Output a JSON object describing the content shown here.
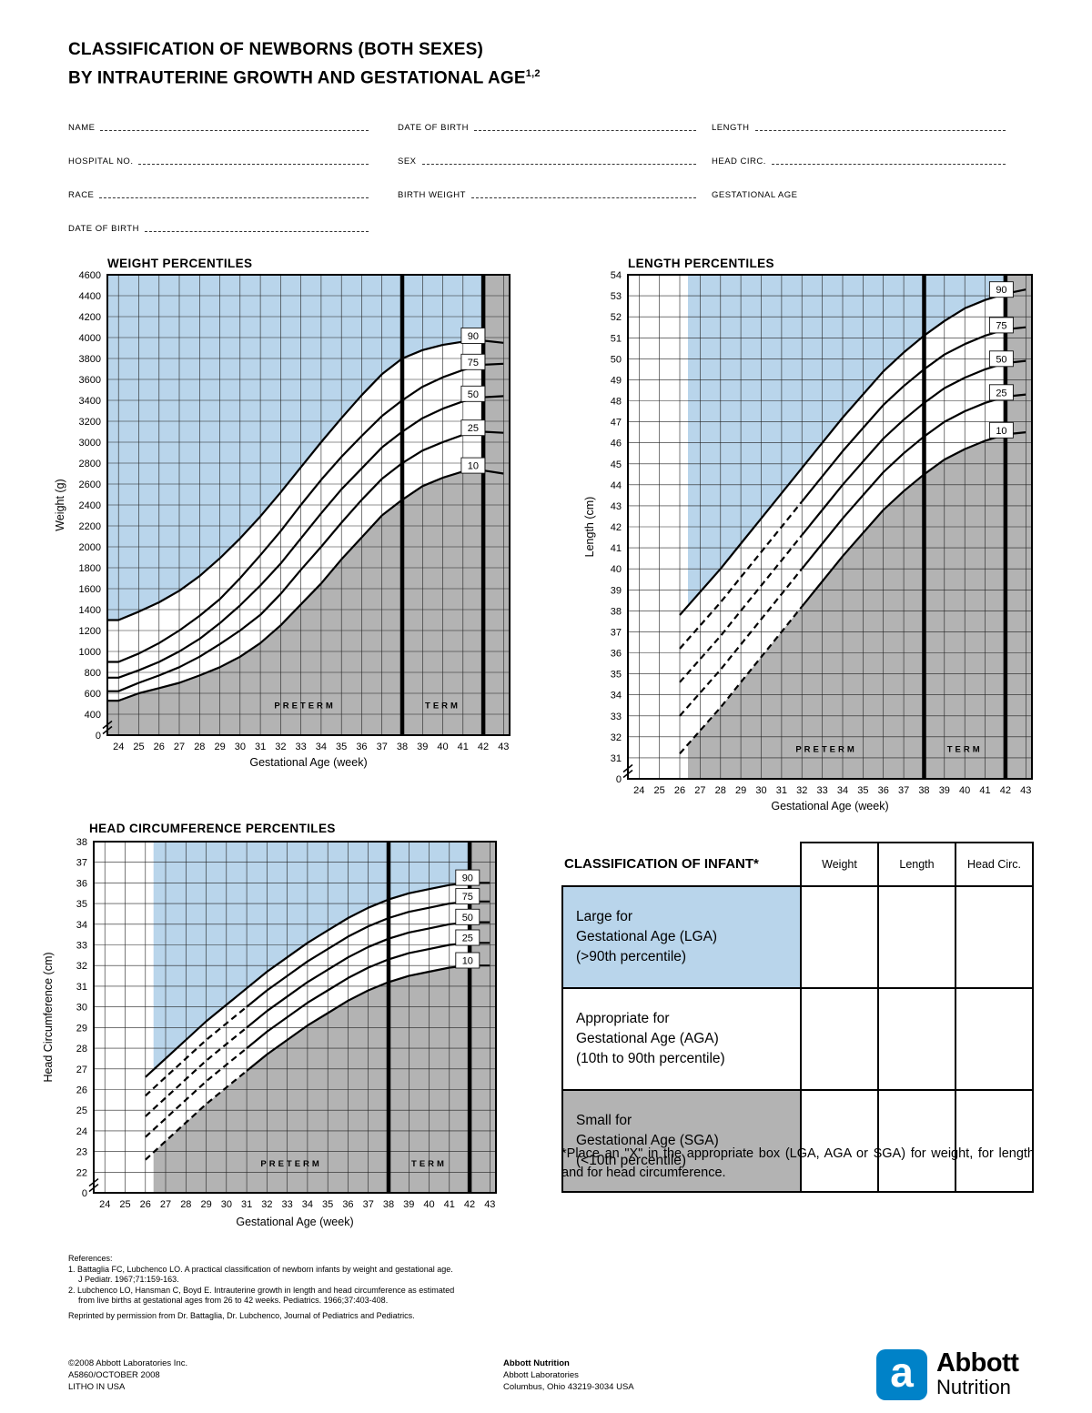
{
  "page": {
    "title_line1": "CLASSIFICATION OF NEWBORNS (BOTH SEXES)",
    "title_line2": "BY INTRAUTERINE GROWTH AND GESTATIONAL AGE",
    "title_superscript": "1,2"
  },
  "form": {
    "col1": [
      {
        "label": "NAME"
      },
      {
        "label": "HOSPITAL NO."
      },
      {
        "label": "RACE"
      },
      {
        "label": "DATE OF BIRTH"
      }
    ],
    "col2": [
      {
        "label": "DATE OF BIRTH"
      },
      {
        "label": "SEX"
      },
      {
        "label": "BIRTH WEIGHT"
      }
    ],
    "col3": [
      {
        "label": "LENGTH"
      },
      {
        "label": "HEAD CIRC."
      },
      {
        "label": "GESTATIONAL AGE"
      }
    ]
  },
  "chart_data": [
    {
      "id": "weight",
      "type": "line",
      "title": "WEIGHT PERCENTILES",
      "xlabel": "Gestational Age (week)",
      "ylabel": "Weight (g)",
      "x": {
        "min": 24,
        "max": 43
      },
      "y": {
        "first": 400,
        "max": 4600,
        "step": 200,
        "zero_break": true
      },
      "series_start_week": 24,
      "extend_left": true,
      "series": [
        {
          "name": "90",
          "values": [
            1300,
            1380,
            1470,
            1580,
            1720,
            1890,
            2080,
            2290,
            2520,
            2760,
            3000,
            3230,
            3450,
            3650,
            3800,
            3880,
            3930,
            3960,
            3970,
            3950
          ]
        },
        {
          "name": "75",
          "values": [
            900,
            980,
            1080,
            1200,
            1340,
            1500,
            1700,
            1920,
            2150,
            2400,
            2640,
            2860,
            3060,
            3250,
            3400,
            3530,
            3620,
            3690,
            3740,
            3750
          ]
        },
        {
          "name": "50",
          "values": [
            750,
            820,
            900,
            1000,
            1120,
            1270,
            1440,
            1630,
            1840,
            2080,
            2320,
            2550,
            2750,
            2950,
            3100,
            3230,
            3320,
            3390,
            3430,
            3440
          ]
        },
        {
          "name": "25",
          "values": [
            620,
            700,
            770,
            850,
            950,
            1070,
            1200,
            1350,
            1550,
            1780,
            2000,
            2230,
            2450,
            2650,
            2800,
            2920,
            3000,
            3070,
            3100,
            3090
          ]
        },
        {
          "name": "10",
          "values": [
            530,
            600,
            650,
            700,
            770,
            850,
            950,
            1080,
            1250,
            1450,
            1650,
            1880,
            2090,
            2300,
            2450,
            2580,
            2660,
            2720,
            2730,
            2700
          ]
        }
      ],
      "dashed_until_week": null,
      "dashed_series": [],
      "regions": {
        "shade_start_week": 23.4,
        "preterm_end_week": 38,
        "term_end_week": 42,
        "preterm_label": "PRETERM",
        "term_label": "TERM"
      },
      "percentile_label_week": 41.5
    },
    {
      "id": "length",
      "type": "line",
      "title": "LENGTH PERCENTILES",
      "xlabel": "Gestational Age (week)",
      "ylabel": "Length (cm)",
      "x": {
        "min": 24,
        "max": 43
      },
      "y": {
        "first": 31,
        "max": 54,
        "step": 1,
        "zero_break": true
      },
      "series_start_week": 26,
      "extend_left": false,
      "series": [
        {
          "name": "90",
          "values": [
            37.8,
            38.9,
            40.0,
            41.2,
            42.4,
            43.6,
            44.8,
            46.0,
            47.2,
            48.3,
            49.4,
            50.3,
            51.1,
            51.8,
            52.4,
            52.8,
            53.1,
            53.3
          ]
        },
        {
          "name": "75",
          "values": [
            36.2,
            37.3,
            38.4,
            39.6,
            40.8,
            42.0,
            43.2,
            44.4,
            45.6,
            46.7,
            47.8,
            48.7,
            49.5,
            50.2,
            50.7,
            51.1,
            51.4,
            51.5
          ]
        },
        {
          "name": "50",
          "values": [
            34.6,
            35.7,
            36.8,
            38.0,
            39.2,
            40.4,
            41.6,
            42.8,
            44.0,
            45.1,
            46.2,
            47.1,
            47.9,
            48.6,
            49.1,
            49.5,
            49.8,
            49.9
          ]
        },
        {
          "name": "25",
          "values": [
            33.0,
            34.1,
            35.2,
            36.4,
            37.6,
            38.8,
            40.0,
            41.2,
            42.4,
            43.5,
            44.6,
            45.5,
            46.3,
            47.0,
            47.5,
            47.9,
            48.2,
            48.3
          ]
        },
        {
          "name": "10",
          "values": [
            31.2,
            32.3,
            33.4,
            34.6,
            35.8,
            37.0,
            38.2,
            39.4,
            40.6,
            41.7,
            42.8,
            43.7,
            44.5,
            45.2,
            45.7,
            46.1,
            46.4,
            46.5
          ]
        }
      ],
      "dashed_until_week": 32,
      "dashed_series": [
        "75",
        "50",
        "25",
        "10"
      ],
      "regions": {
        "shade_start_week": 26.4,
        "preterm_end_week": 38,
        "term_end_week": 42,
        "preterm_label": "PRETERM",
        "term_label": "TERM"
      },
      "percentile_label_week": 41.8
    },
    {
      "id": "head",
      "type": "line",
      "title": "HEAD CIRCUMFERENCE PERCENTILES",
      "xlabel": "Gestational Age (week)",
      "ylabel": "Head Circumference (cm)",
      "x": {
        "min": 24,
        "max": 43
      },
      "y": {
        "first": 22,
        "max": 38,
        "step": 1,
        "zero_break": true
      },
      "series_start_week": 26,
      "extend_left": false,
      "series": [
        {
          "name": "90",
          "values": [
            26.6,
            27.5,
            28.4,
            29.3,
            30.1,
            30.9,
            31.7,
            32.4,
            33.1,
            33.7,
            34.3,
            34.8,
            35.2,
            35.5,
            35.7,
            35.9,
            36.0,
            36.0
          ]
        },
        {
          "name": "75",
          "values": [
            25.7,
            26.6,
            27.5,
            28.4,
            29.2,
            30.0,
            30.8,
            31.5,
            32.2,
            32.8,
            33.4,
            33.9,
            34.3,
            34.6,
            34.8,
            35.0,
            35.1,
            35.1
          ]
        },
        {
          "name": "50",
          "values": [
            24.7,
            25.6,
            26.5,
            27.4,
            28.2,
            29.0,
            29.8,
            30.5,
            31.2,
            31.8,
            32.4,
            32.9,
            33.3,
            33.6,
            33.8,
            34.0,
            34.1,
            34.1
          ]
        },
        {
          "name": "25",
          "values": [
            23.7,
            24.6,
            25.5,
            26.4,
            27.2,
            28.0,
            28.8,
            29.5,
            30.2,
            30.8,
            31.4,
            31.9,
            32.3,
            32.6,
            32.8,
            33.0,
            33.1,
            33.1
          ]
        },
        {
          "name": "10",
          "values": [
            22.6,
            23.5,
            24.4,
            25.3,
            26.1,
            26.9,
            27.7,
            28.4,
            29.1,
            29.7,
            30.3,
            30.8,
            31.2,
            31.5,
            31.7,
            31.9,
            32.0,
            32.0
          ]
        }
      ],
      "dashed_until_week": 31,
      "dashed_series": [
        "75",
        "50",
        "25",
        "10"
      ],
      "regions": {
        "shade_start_week": 26.4,
        "preterm_end_week": 38,
        "term_end_week": 42,
        "preterm_label": "PRETERM",
        "term_label": "TERM"
      },
      "percentile_label_week": 41.9
    }
  ],
  "classification_table": {
    "title": "CLASSIFICATION OF INFANT*",
    "col_headers": [
      "Weight",
      "Length",
      "Head Circ."
    ],
    "rows": [
      {
        "lines": [
          "Large for",
          "Gestational Age (LGA)",
          "(>90th percentile)"
        ],
        "bg": "blue"
      },
      {
        "lines": [
          "Appropriate for",
          "Gestational Age (AGA)",
          "(10th to 90th percentile)"
        ],
        "bg": "white"
      },
      {
        "lines": [
          "Small for",
          "Gestational Age (SGA)",
          "(<10th percentile)"
        ],
        "bg": "gray"
      }
    ]
  },
  "footnote": {
    "text": "*Place an \"X\" in the appropriate box (LGA, AGA or SGA) for weight, for length and for head circumference."
  },
  "references": {
    "lines": [
      "References:",
      "1. Battaglia FC, Lubchenco LO. A practical classification of newborn infants by weight and gestational age.",
      "J Pediatr. 1967;71:159-163.",
      "2. Lubchenco LO, Hansman C, Boyd E. Intrauterine growth in length and head circumference as estimated",
      "from live births at gestational ages from 26 to 42 weeks. Pediatrics. 1966;37:403-408.",
      "Reprinted by permission from Dr. Battaglia, Dr. Lubchenco, Journal of Pediatrics and Pediatrics."
    ]
  },
  "footer": {
    "left_lines": [
      "©2008 Abbott Laboratories Inc.",
      "A5860/OCTOBER 2008",
      "LITHO IN USA"
    ],
    "center_lines": [
      "Abbott Nutrition",
      "Abbott Laboratories",
      "Columbus, Ohio 43219-3034 USA"
    ],
    "logo": {
      "icon_letter": "a",
      "brand": "Abbott",
      "sub": "Nutrition"
    }
  },
  "colors": {
    "chart_blue": "#b9d5eb",
    "chart_gray": "#b3b3b3",
    "abbott_blue": "#0082c8"
  }
}
